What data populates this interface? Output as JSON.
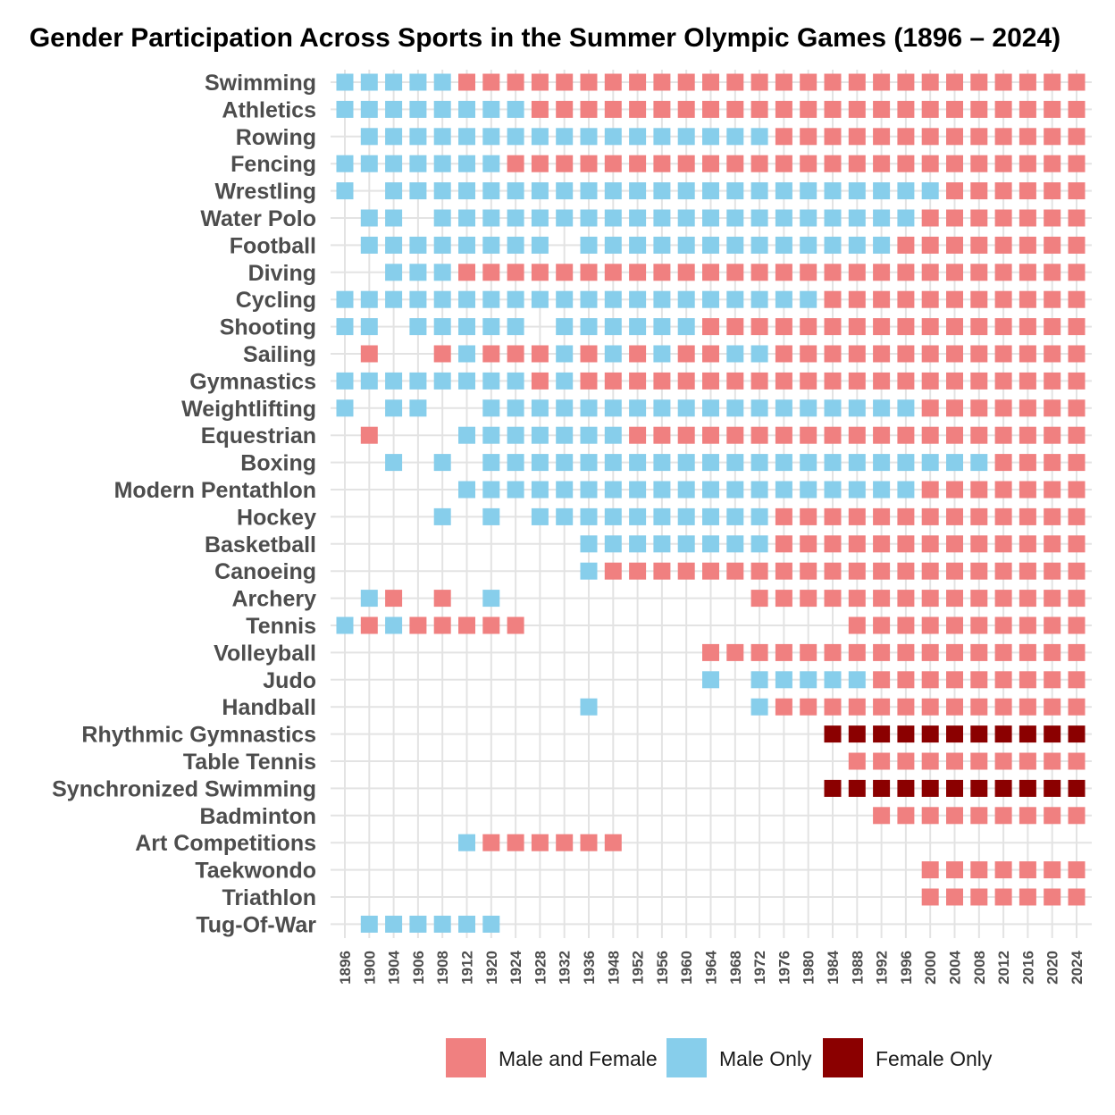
{
  "chart_data": {
    "type": "heatmap",
    "title": "Gender Participation Across Sports in the Summer Olympic Games (1896 – 2024)",
    "xlabel": "",
    "ylabel": "",
    "years": [
      "1896",
      "1900",
      "1904",
      "1906",
      "1908",
      "1912",
      "1920",
      "1924",
      "1928",
      "1932",
      "1936",
      "1948",
      "1952",
      "1956",
      "1960",
      "1964",
      "1968",
      "1972",
      "1976",
      "1980",
      "1984",
      "1988",
      "1992",
      "1996",
      "2000",
      "2004",
      "2008",
      "2012",
      "2016",
      "2020",
      "2024"
    ],
    "category_codes": {
      "B": "Male and Female",
      "M": "Male Only",
      "F": "Female Only",
      ".": "none"
    },
    "colors": {
      "B": "#f08080",
      "M": "#87ceeb",
      "F": "#8b0000",
      "grid": "#e3e3e3"
    },
    "sports": [
      {
        "name": "Swimming",
        "codes": "MMMMMBBBBBBBBBBBBBBBBBBBBBBBBBB"
      },
      {
        "name": "Athletics",
        "codes": "MMMMMMMMBBBBBBBBBBBBBBBBBBBBBBB"
      },
      {
        "name": "Rowing",
        "codes": ".MMMMMMMMMMMMMMMMMBBBBBBBBBBBBB"
      },
      {
        "name": "Fencing",
        "codes": "MMMMMMMBBBBBBBBBBBBBBBBBBBBBBBB"
      },
      {
        "name": "Wrestling",
        "codes": "M.MMMMMMMMMMMMMMMMMMMMMMMBBBBBB"
      },
      {
        "name": "Water Polo",
        "codes": ".MM.MMMMMMMMMMMMMMMMMMMMBBBBBBB"
      },
      {
        "name": "Football",
        "codes": ".MMMMMMMM.MMMMMMMMMMMMMBBBBBBBB"
      },
      {
        "name": "Diving",
        "codes": "..MMMBBBBBBBBBBBBBBBBBBBBBBBBBB"
      },
      {
        "name": "Cycling",
        "codes": "MMMMMMMMMMMMMMMMMMMMBBBBBBBBBBB"
      },
      {
        "name": "Shooting",
        "codes": "MM.MMMMM.MMMMMMBBBBBBBBBBBBBBBB"
      },
      {
        "name": "Sailing",
        "codes": ".B..BMBBBMBMBMBBMMBBBBBBBBBBBBB"
      },
      {
        "name": "Gymnastics",
        "codes": "MMMMMMMMBMBBBBBBBBBBBBBBBBBBBBB"
      },
      {
        "name": "Weightlifting",
        "codes": "M.MM..MMMMMMMMMMMMMMMMMMBBBBBBB"
      },
      {
        "name": "Equestrian",
        "codes": ".B...MMMMMMMBBBBBBBBBBBBBBBBBBB"
      },
      {
        "name": "Boxing",
        "codes": "..M.M.MMMMMMMMMMMMMMMMMMMMMBBBB"
      },
      {
        "name": "Modern Pentathlon",
        "codes": ".....MMMMMMMMMMMMMMMMMMMBBBBBBB"
      },
      {
        "name": "Hockey",
        "codes": "....M.M.MMMMMMMMMMBBBBBBBBBBBBB"
      },
      {
        "name": "Basketball",
        "codes": "..........MMMMMMMMBBBBBBBBBBBBB"
      },
      {
        "name": "Canoeing",
        "codes": "..........MBBBBBBBBBBBBBBBBBBBB"
      },
      {
        "name": "Archery",
        "codes": ".MB.B.M..........BBBBBBBBBBBBBB"
      },
      {
        "name": "Tennis",
        "codes": "MBMBBBBB.............BBBBBBBBBB"
      },
      {
        "name": "Volleyball",
        "codes": "...............BBBBBBBBBBBBBBBB"
      },
      {
        "name": "Judo",
        "codes": "...............M.MMMMMBBBBBBBBB"
      },
      {
        "name": "Handball",
        "codes": "..........M......MBBBBBBBBBBBBB"
      },
      {
        "name": "Rhythmic Gymnastics",
        "codes": "....................FFFFFFFFFFF"
      },
      {
        "name": "Table Tennis",
        "codes": ".....................BBBBBBBBBB"
      },
      {
        "name": "Synchronized Swimming",
        "codes": "....................FFFFFFFFFFF"
      },
      {
        "name": "Badminton",
        "codes": "......................BBBBBBBBB"
      },
      {
        "name": "Art Competitions",
        "codes": ".....MBBBBBB..................."
      },
      {
        "name": "Taekwondo",
        "codes": "........................BBBBBBB"
      },
      {
        "name": "Triathlon",
        "codes": "........................BBBBBBB"
      },
      {
        "name": "Tug-Of-War",
        "codes": ".MMMMMM........................"
      }
    ],
    "legend": [
      {
        "code": "B",
        "label": "Male and Female"
      },
      {
        "code": "M",
        "label": "Male Only"
      },
      {
        "code": "F",
        "label": "Female Only"
      }
    ],
    "legend_position": "bottom",
    "grid": true
  }
}
